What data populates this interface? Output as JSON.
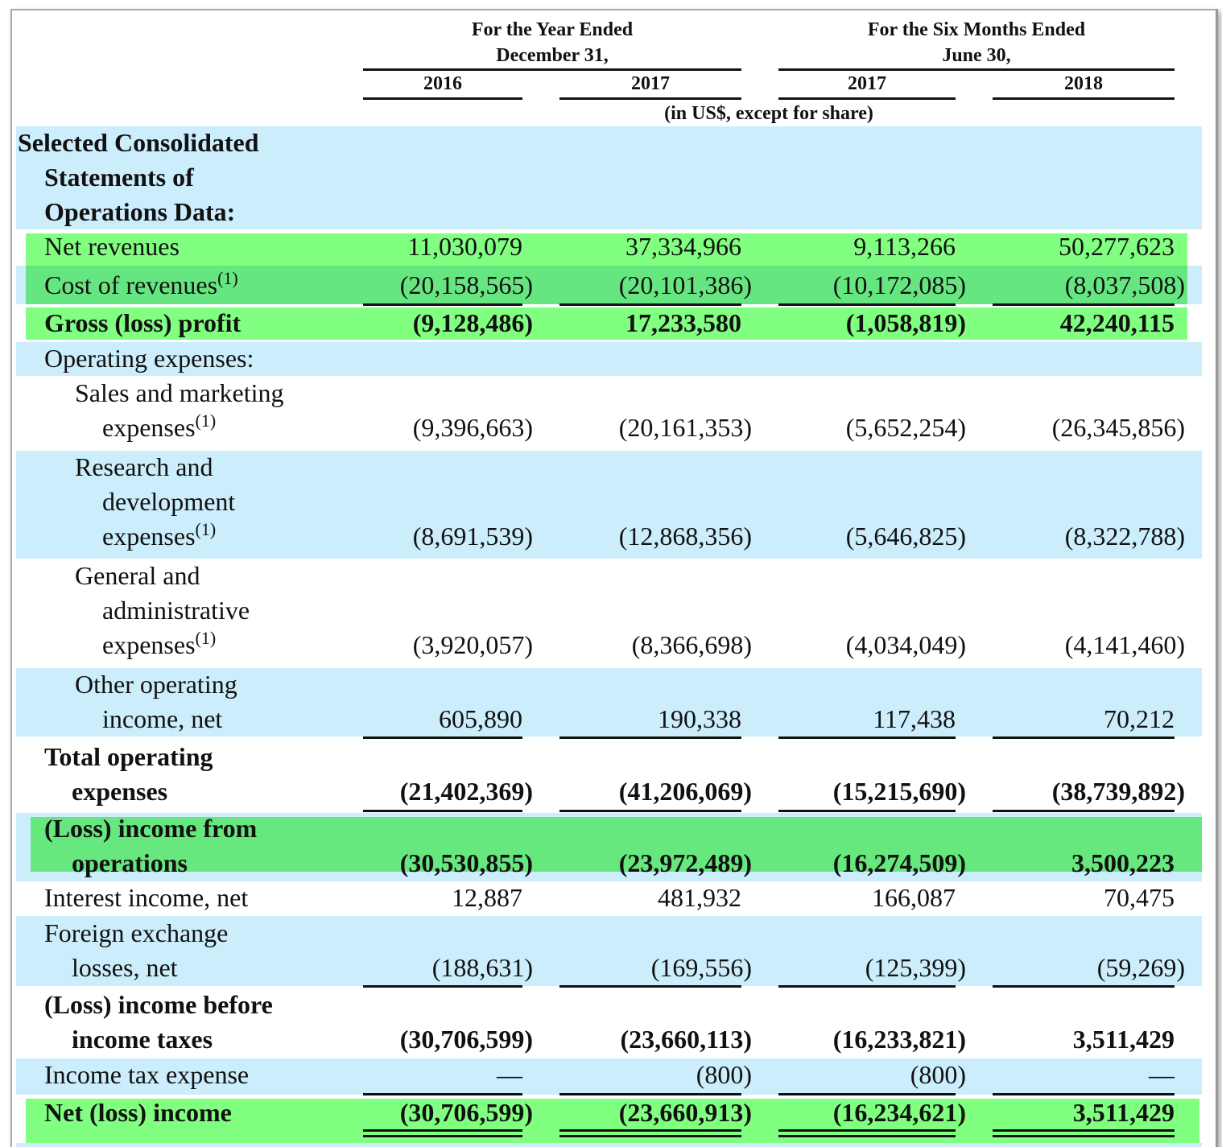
{
  "header": {
    "groups": [
      {
        "lines": [
          "For the Year Ended",
          "December 31,"
        ],
        "years": [
          "2016",
          "2017"
        ]
      },
      {
        "lines": [
          "For the Six Months Ended",
          "June 30,"
        ],
        "years": [
          "2017",
          "2018"
        ]
      }
    ],
    "unit_note": "(in US$, except for share)"
  },
  "table": {
    "rows": [
      {
        "label": [
          "Selected Consolidated",
          "Statements of",
          "Operations Data:"
        ]
      },
      {
        "label": [
          "Net revenues"
        ],
        "values": [
          "11,030,079",
          "37,334,966",
          "9,113,266",
          "50,277,623"
        ]
      },
      {
        "label": [
          "Cost of revenues"
        ],
        "note": "(1)",
        "values": [
          "(20,158,565)",
          "(20,101,386)",
          "(10,172,085)",
          "(8,037,508)"
        ]
      },
      {
        "label": [
          "Gross (loss) profit"
        ],
        "values": [
          "(9,128,486)",
          "17,233,580",
          "(1,058,819)",
          "42,240,115"
        ]
      },
      {
        "label": [
          "Operating expenses:"
        ]
      },
      {
        "label": [
          "Sales and marketing",
          "expenses"
        ],
        "note": "(1)",
        "values": [
          "(9,396,663)",
          "(20,161,353)",
          "(5,652,254)",
          "(26,345,856)"
        ]
      },
      {
        "label": [
          "Research and",
          "development",
          "expenses"
        ],
        "note": "(1)",
        "values": [
          "(8,691,539)",
          "(12,868,356)",
          "(5,646,825)",
          "(8,322,788)"
        ]
      },
      {
        "label": [
          "General and",
          "administrative",
          "expenses"
        ],
        "note": "(1)",
        "values": [
          "(3,920,057)",
          "(8,366,698)",
          "(4,034,049)",
          "(4,141,460)"
        ]
      },
      {
        "label": [
          "Other operating",
          "income, net"
        ],
        "values": [
          "605,890",
          "190,338",
          "117,438",
          "70,212"
        ]
      },
      {
        "label": [
          "Total operating",
          "expenses"
        ],
        "values": [
          "(21,402,369)",
          "(41,206,069)",
          "(15,215,690)",
          "(38,739,892)"
        ]
      },
      {
        "label": [
          "(Loss) income from",
          "operations"
        ],
        "values": [
          "(30,530,855)",
          "(23,972,489)",
          "(16,274,509)",
          "3,500,223"
        ]
      },
      {
        "label": [
          "Interest income, net"
        ],
        "values": [
          "12,887",
          "481,932",
          "166,087",
          "70,475"
        ]
      },
      {
        "label": [
          "Foreign exchange",
          "losses, net"
        ],
        "values": [
          "(188,631)",
          "(169,556)",
          "(125,399)",
          "(59,269)"
        ]
      },
      {
        "label": [
          "(Loss) income before",
          "income taxes"
        ],
        "values": [
          "(30,706,599)",
          "(23,660,113)",
          "(16,233,821)",
          "3,511,429"
        ]
      },
      {
        "label": [
          "Income tax expense"
        ],
        "values": [
          "—",
          "(800)",
          "(800)",
          "—"
        ]
      },
      {
        "label": [
          "Net (loss) income"
        ],
        "values": [
          "(30,706,599)",
          "(23,660,913)",
          "(16,234,621)",
          "3,511,429"
        ]
      }
    ]
  }
}
